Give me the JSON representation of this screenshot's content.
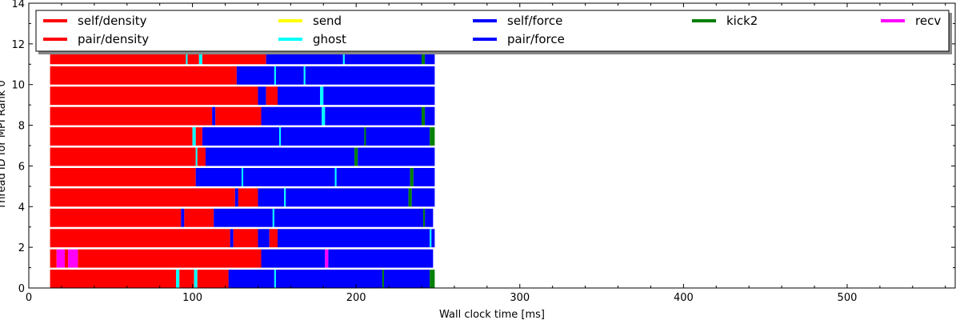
{
  "chart_data": {
    "type": "bar",
    "xlabel": "Wall clock time [ms]",
    "ylabel": "Thread ID for MPI Rank 0",
    "xlim": [
      0,
      566
    ],
    "ylim": [
      0,
      14
    ],
    "x_ticks": [
      0,
      100,
      200,
      300,
      400,
      500
    ],
    "y_ticks": [
      0,
      2,
      4,
      6,
      8,
      10,
      12,
      14
    ],
    "grid": false,
    "legend_position": "top",
    "series": [
      {
        "name": "self/density",
        "color": "#ff0000"
      },
      {
        "name": "pair/density",
        "color": "#ff0000"
      },
      {
        "name": "send",
        "color": "#ffff00"
      },
      {
        "name": "ghost",
        "color": "#00ffff"
      },
      {
        "name": "self/force",
        "color": "#0000ff"
      },
      {
        "name": "pair/force",
        "color": "#0000ff"
      },
      {
        "name": "kick2",
        "color": "#008000"
      },
      {
        "name": "recv",
        "color": "#ff00ff"
      }
    ],
    "threads": [
      {
        "thread": 0,
        "start": 13,
        "segments": [
          {
            "task": "pair/density",
            "end": 90
          },
          {
            "task": "ghost",
            "end": 92
          },
          {
            "task": "pair/density",
            "end": 101
          },
          {
            "task": "ghost",
            "end": 103
          },
          {
            "task": "pair/density",
            "end": 122
          },
          {
            "task": "pair/force",
            "end": 150
          },
          {
            "task": "ghost",
            "end": 151
          },
          {
            "task": "pair/force",
            "end": 216
          },
          {
            "task": "kick2",
            "end": 217
          },
          {
            "task": "pair/force",
            "end": 245
          },
          {
            "task": "kick2",
            "end": 248
          }
        ]
      },
      {
        "thread": 1,
        "start": 13,
        "segments": [
          {
            "task": "pair/density",
            "end": 17
          },
          {
            "task": "recv",
            "end": 22
          },
          {
            "task": "pair/density",
            "end": 24
          },
          {
            "task": "recv",
            "end": 30
          },
          {
            "task": "pair/density",
            "end": 142
          },
          {
            "task": "pair/force",
            "end": 181
          },
          {
            "task": "recv",
            "end": 183
          },
          {
            "task": "pair/force",
            "end": 247
          }
        ]
      },
      {
        "thread": 2,
        "start": 13,
        "segments": [
          {
            "task": "pair/density",
            "end": 123
          },
          {
            "task": "pair/force",
            "end": 125
          },
          {
            "task": "pair/density",
            "end": 140
          },
          {
            "task": "pair/force",
            "end": 147
          },
          {
            "task": "pair/density",
            "end": 152
          },
          {
            "task": "pair/force",
            "end": 245
          },
          {
            "task": "ghost",
            "end": 246
          },
          {
            "task": "pair/force",
            "end": 248
          }
        ]
      },
      {
        "thread": 3,
        "start": 13,
        "segments": [
          {
            "task": "pair/density",
            "end": 93
          },
          {
            "task": "pair/force",
            "end": 95
          },
          {
            "task": "pair/density",
            "end": 113
          },
          {
            "task": "pair/force",
            "end": 149
          },
          {
            "task": "ghost",
            "end": 150
          },
          {
            "task": "pair/force",
            "end": 241
          },
          {
            "task": "kick2",
            "end": 242
          },
          {
            "task": "pair/force",
            "end": 247
          }
        ]
      },
      {
        "thread": 4,
        "start": 13,
        "segments": [
          {
            "task": "pair/density",
            "end": 126
          },
          {
            "task": "pair/force",
            "end": 128
          },
          {
            "task": "pair/density",
            "end": 140
          },
          {
            "task": "pair/force",
            "end": 156
          },
          {
            "task": "ghost",
            "end": 157
          },
          {
            "task": "pair/force",
            "end": 232
          },
          {
            "task": "kick2",
            "end": 234
          },
          {
            "task": "pair/force",
            "end": 248
          }
        ]
      },
      {
        "thread": 5,
        "start": 13,
        "segments": [
          {
            "task": "pair/density",
            "end": 102
          },
          {
            "task": "pair/force",
            "end": 130
          },
          {
            "task": "ghost",
            "end": 131
          },
          {
            "task": "pair/force",
            "end": 187
          },
          {
            "task": "ghost",
            "end": 188
          },
          {
            "task": "pair/force",
            "end": 233
          },
          {
            "task": "kick2",
            "end": 235
          },
          {
            "task": "pair/force",
            "end": 248
          }
        ]
      },
      {
        "thread": 6,
        "start": 13,
        "segments": [
          {
            "task": "pair/density",
            "end": 102
          },
          {
            "task": "ghost",
            "end": 103
          },
          {
            "task": "pair/density",
            "end": 108
          },
          {
            "task": "pair/force",
            "end": 199
          },
          {
            "task": "kick2",
            "end": 201
          },
          {
            "task": "pair/force",
            "end": 248
          }
        ]
      },
      {
        "thread": 7,
        "start": 13,
        "segments": [
          {
            "task": "pair/density",
            "end": 100
          },
          {
            "task": "ghost",
            "end": 102
          },
          {
            "task": "pair/density",
            "end": 106
          },
          {
            "task": "pair/force",
            "end": 153
          },
          {
            "task": "ghost",
            "end": 154
          },
          {
            "task": "pair/force",
            "end": 205
          },
          {
            "task": "kick2",
            "end": 206
          },
          {
            "task": "pair/force",
            "end": 245
          },
          {
            "task": "kick2",
            "end": 248
          }
        ]
      },
      {
        "thread": 8,
        "start": 13,
        "segments": [
          {
            "task": "pair/density",
            "end": 112
          },
          {
            "task": "pair/force",
            "end": 114
          },
          {
            "task": "pair/density",
            "end": 142
          },
          {
            "task": "pair/force",
            "end": 179
          },
          {
            "task": "ghost",
            "end": 181
          },
          {
            "task": "pair/force",
            "end": 240
          },
          {
            "task": "kick2",
            "end": 242
          },
          {
            "task": "pair/force",
            "end": 248
          }
        ]
      },
      {
        "thread": 9,
        "start": 13,
        "segments": [
          {
            "task": "pair/density",
            "end": 140
          },
          {
            "task": "pair/force",
            "end": 145
          },
          {
            "task": "pair/density",
            "end": 152
          },
          {
            "task": "pair/force",
            "end": 178
          },
          {
            "task": "ghost",
            "end": 180
          },
          {
            "task": "pair/force",
            "end": 248
          }
        ]
      },
      {
        "thread": 10,
        "start": 13,
        "segments": [
          {
            "task": "pair/density",
            "end": 127
          },
          {
            "task": "pair/force",
            "end": 150
          },
          {
            "task": "ghost",
            "end": 151
          },
          {
            "task": "pair/force",
            "end": 168
          },
          {
            "task": "ghost",
            "end": 169
          },
          {
            "task": "pair/force",
            "end": 248
          }
        ]
      },
      {
        "thread": 11,
        "start": 13,
        "segments": [
          {
            "task": "pair/density",
            "end": 96
          },
          {
            "task": "ghost",
            "end": 97
          },
          {
            "task": "pair/density",
            "end": 104
          },
          {
            "task": "ghost",
            "end": 106
          },
          {
            "task": "pair/density",
            "end": 145
          },
          {
            "task": "pair/force",
            "end": 192
          },
          {
            "task": "ghost",
            "end": 193
          },
          {
            "task": "pair/force",
            "end": 240
          },
          {
            "task": "kick2",
            "end": 242
          },
          {
            "task": "pair/force",
            "end": 248
          }
        ]
      }
    ]
  }
}
